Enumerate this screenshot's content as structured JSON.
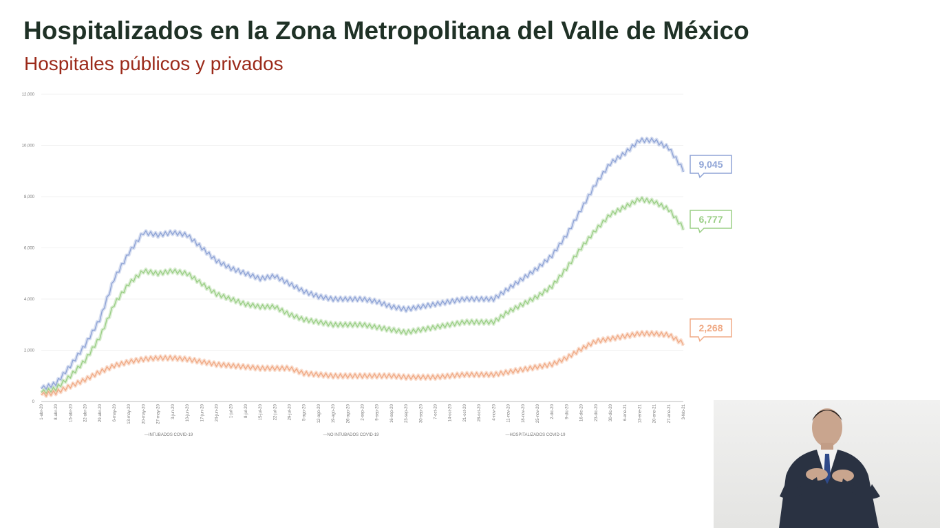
{
  "title": "Hospitalizados en la Zona Metropolitana del Valle de México",
  "subtitle": "Hospitales públicos y privados",
  "colors": {
    "title": "#1f3126",
    "subtitle": "#9b2a1a",
    "hospitalizados": "#8fa4d6",
    "no_intubados": "#9bcf86",
    "intubados": "#f0aa85"
  },
  "chart_data": {
    "type": "line",
    "ylim": [
      0,
      12000
    ],
    "yticks": [
      0,
      2000,
      4000,
      6000,
      8000,
      10000,
      12000
    ],
    "ytick_labels": [
      "0",
      "2,000",
      "4,000",
      "6,000",
      "8,000",
      "10,000",
      "12,000"
    ],
    "x_tick_labels": [
      "1-abr-20",
      "8-abr-20",
      "15-abr-20",
      "22-abr-20",
      "29-abr-20",
      "6-may-20",
      "13-may-20",
      "20-may-20",
      "27-may-20",
      "3-jun-20",
      "10-jun-20",
      "17-jun-20",
      "24-jun-20",
      "1-jul-20",
      "8-jul-20",
      "15-jul-20",
      "22-jul-20",
      "29-jul-20",
      "5-ago-20",
      "12-ago-20",
      "19-ago-20",
      "26-ago-20",
      "2-sep-20",
      "9-sep-20",
      "16-sep-20",
      "23-sep-20",
      "30-sep-20",
      "7-oct-20",
      "14-oct-20",
      "21-oct-20",
      "28-oct-20",
      "4-nov-20",
      "11-nov-20",
      "18-nov-20",
      "25-nov-20",
      "2-dic-20",
      "9-dic-20",
      "16-dic-20",
      "23-dic-20",
      "30-dic-20",
      "6-ene-21",
      "13-ene-21",
      "20-ene-21",
      "27-ene-21",
      "3-feb-21"
    ],
    "legend": [
      "INTUBADOS COVID-19",
      "NO INTUBADOS COVID-19",
      "HOSPITALIZADOS COVID-19"
    ],
    "series": [
      {
        "name": "HOSPITALIZADOS COVID-19",
        "key": "hospitalizados",
        "last_label": "9,045",
        "values": [
          500,
          700,
          1400,
          2200,
          3200,
          4800,
          5800,
          6600,
          6500,
          6600,
          6500,
          6000,
          5500,
          5200,
          5000,
          4800,
          4900,
          4600,
          4300,
          4100,
          4000,
          4000,
          4000,
          3900,
          3700,
          3600,
          3700,
          3800,
          3900,
          4000,
          4000,
          4000,
          4400,
          4800,
          5200,
          5700,
          6500,
          7500,
          8500,
          9300,
          9700,
          10200,
          10200,
          9900,
          9045
        ]
      },
      {
        "name": "NO INTUBADOS COVID-19",
        "key": "no_intubados",
        "last_label": "6,777",
        "values": [
          350,
          500,
          1000,
          1600,
          2500,
          3800,
          4600,
          5100,
          5000,
          5100,
          5000,
          4600,
          4200,
          4000,
          3800,
          3700,
          3700,
          3400,
          3200,
          3100,
          3000,
          3000,
          3000,
          2900,
          2800,
          2700,
          2800,
          2900,
          3000,
          3100,
          3100,
          3100,
          3500,
          3800,
          4100,
          4500,
          5200,
          6000,
          6700,
          7300,
          7600,
          7900,
          7800,
          7500,
          6777
        ]
      },
      {
        "name": "INTUBADOS COVID-19",
        "key": "intubados",
        "last_label": "2,268",
        "values": [
          250,
          350,
          600,
          850,
          1150,
          1400,
          1550,
          1650,
          1700,
          1700,
          1650,
          1550,
          1450,
          1400,
          1350,
          1300,
          1300,
          1300,
          1100,
          1050,
          1000,
          1000,
          1000,
          1000,
          1000,
          950,
          950,
          950,
          1000,
          1050,
          1050,
          1050,
          1150,
          1250,
          1350,
          1450,
          1700,
          2050,
          2350,
          2450,
          2550,
          2650,
          2650,
          2600,
          2268
        ]
      }
    ]
  },
  "inset": {
    "description_icon": "sign-language-interpreter-icon"
  }
}
